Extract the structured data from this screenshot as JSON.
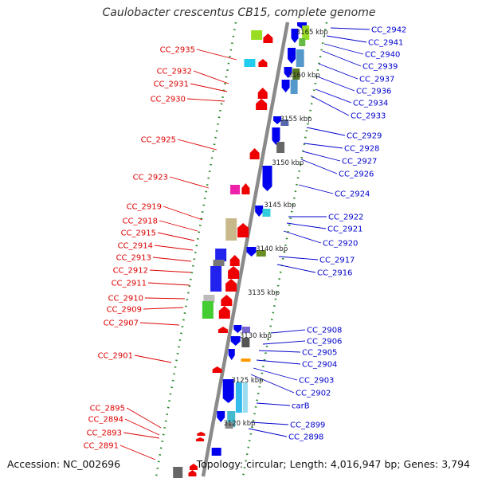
{
  "title": "Caulobacter crescentus CB15, complete genome",
  "footer": {
    "accession": "Accession: NC_002696",
    "topology": "Topology: circular; Length: 4,016,947 bp; Genes: 3,794"
  },
  "colors": {
    "forward_label": "#0000cc",
    "reverse_label": "#dd0000",
    "backbone": "#8a8a8a",
    "tick_dots": "#2a8a2a",
    "forward_gene": "#0000ee",
    "reverse_gene": "#ee0000"
  },
  "ruler_labels": [
    "3165 kbp",
    "3160 kbp",
    "3155 kbp",
    "3150 kbp",
    "3145 kbp",
    "3140 kbp",
    "3135 kbp",
    "3130 kbp",
    "3125 kbp",
    "3120 kbp"
  ],
  "forward_labels": [
    "CC_2942",
    "CC_2941",
    "CC_2940",
    "CC_2939",
    "CC_2937",
    "CC_2936",
    "CC_2934",
    "CC_2933",
    "CC_2929",
    "CC_2928",
    "CC_2927",
    "CC_2926",
    "CC_2924",
    "CC_2922",
    "CC_2921",
    "CC_2920",
    "CC_2917",
    "CC_2916",
    "CC_2908",
    "CC_2906",
    "CC_2905",
    "CC_2904",
    "CC_2903",
    "CC_2902",
    "carB",
    "CC_2899",
    "CC_2898"
  ],
  "reverse_labels": [
    "CC_2935",
    "CC_2932",
    "CC_2931",
    "CC_2930",
    "CC_2925",
    "CC_2923",
    "CC_2919",
    "CC_2918",
    "CC_2915",
    "CC_2914",
    "CC_2913",
    "CC_2912",
    "CC_2911",
    "CC_2910",
    "CC_2909",
    "CC_2907",
    "CC_2901",
    "CC_2895",
    "CC_2894",
    "CC_2893",
    "CC_2891"
  ]
}
